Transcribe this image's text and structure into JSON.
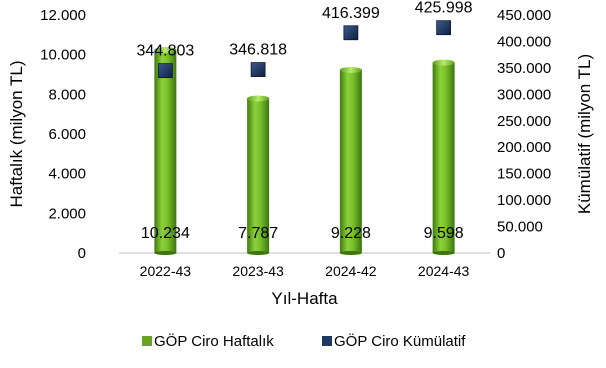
{
  "chart_data": {
    "type": "bar",
    "categories": [
      "2022-43",
      "2023-43",
      "2024-42",
      "2024-43"
    ],
    "xlabel": "Yıl-Hafta",
    "ylabel": "Haftalık (milyon TL)",
    "y2label": "Kümülatif (milyon TL)",
    "ylim": [
      0,
      12000
    ],
    "y2lim": [
      0,
      450000
    ],
    "yticks": [
      "0",
      "2.000",
      "4.000",
      "6.000",
      "8.000",
      "10.000",
      "12.000"
    ],
    "y2ticks": [
      "0",
      "50.000",
      "100.000",
      "150.000",
      "200.000",
      "250.000",
      "300.000",
      "350.000",
      "400.000",
      "450.000"
    ],
    "grid": false,
    "legend_position": "bottom",
    "series": [
      {
        "name": "GÖP Ciro Haftalık",
        "kind": "bar",
        "axis": "left",
        "color": "#6aa321",
        "values": [
          10234,
          7787,
          9228,
          9598
        ],
        "labels": [
          "10.234",
          "7.787",
          "9.228",
          "9.598"
        ]
      },
      {
        "name": "GÖP Ciro Kümülatif",
        "kind": "marker",
        "axis": "right",
        "color": "#1f3864",
        "values": [
          344803,
          346818,
          416399,
          425998
        ],
        "labels": [
          "344.803",
          "346.818",
          "416.399",
          "425.998"
        ]
      }
    ]
  }
}
